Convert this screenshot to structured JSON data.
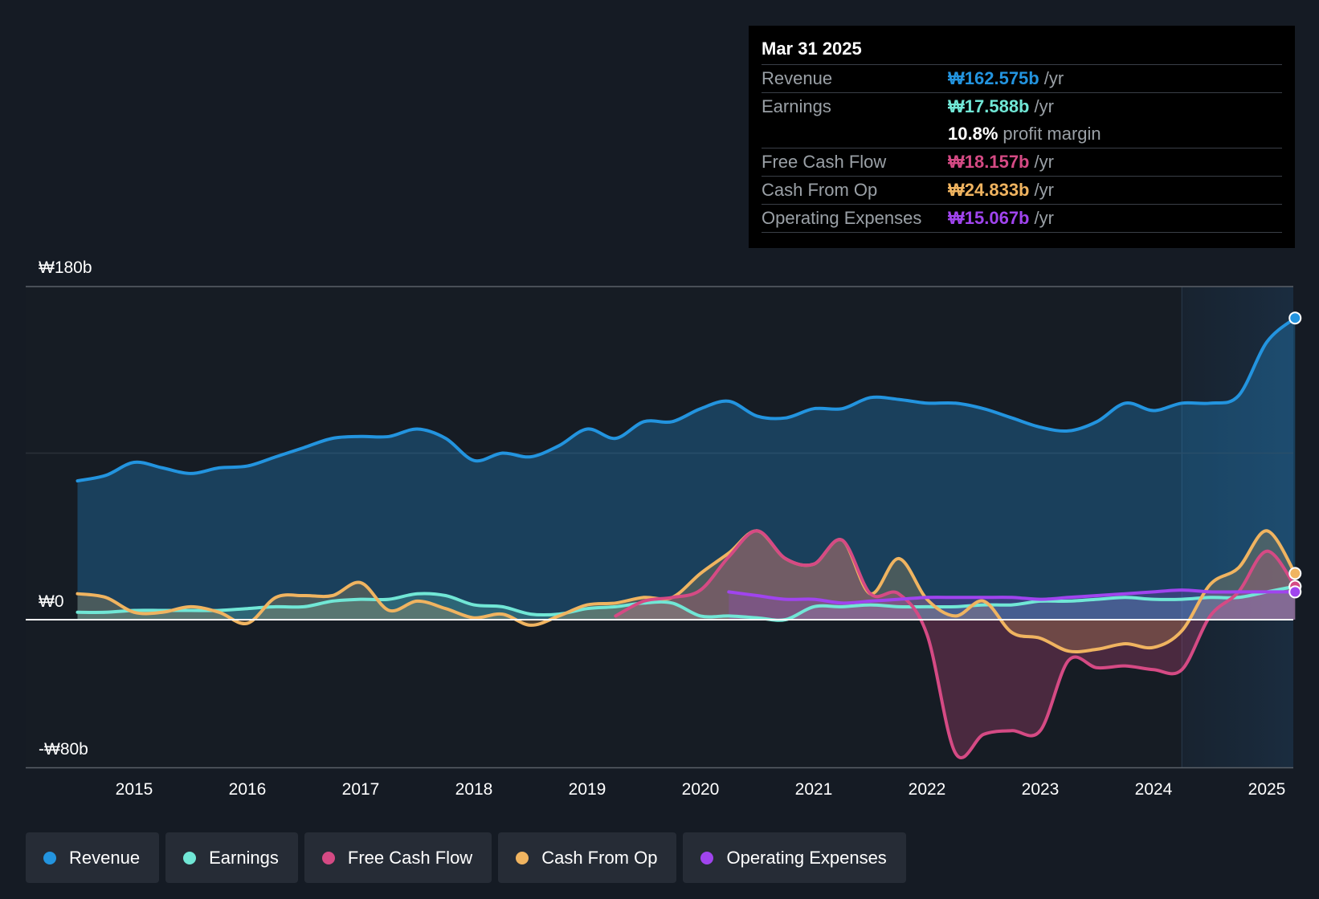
{
  "colors": {
    "background": "#151b24",
    "revenue": "#2394df",
    "earnings": "#71e7d6",
    "free_cash_flow": "#d54a84",
    "cash_from_op": "#f0b460",
    "operating_expenses": "#a044ee"
  },
  "tooltip": {
    "date": "Mar 31 2025",
    "rows": [
      {
        "label": "Revenue",
        "value": "₩162.575b",
        "unit": "/yr",
        "color": "#2394df"
      },
      {
        "label": "Earnings",
        "value": "₩17.588b",
        "unit": "/yr",
        "color": "#71e7d6"
      },
      {
        "label": "Free Cash Flow",
        "value": "₩18.157b",
        "unit": "/yr",
        "color": "#d54a84"
      },
      {
        "label": "Cash From Op",
        "value": "₩24.833b",
        "unit": "/yr",
        "color": "#f0b460"
      },
      {
        "label": "Operating Expenses",
        "value": "₩15.067b",
        "unit": "/yr",
        "color": "#a044ee"
      }
    ],
    "margin_value": "10.8%",
    "margin_label": "profit margin"
  },
  "legend": [
    {
      "label": "Revenue",
      "color": "#2394df"
    },
    {
      "label": "Earnings",
      "color": "#71e7d6"
    },
    {
      "label": "Free Cash Flow",
      "color": "#d54a84"
    },
    {
      "label": "Cash From Op",
      "color": "#f0b460"
    },
    {
      "label": "Operating Expenses",
      "color": "#a044ee"
    }
  ],
  "chart_data": {
    "type": "area",
    "title": "",
    "xlabel": "",
    "ylabel": "",
    "x_range": [
      2014.0,
      2025.25
    ],
    "ylim": [
      -80,
      180
    ],
    "y_tick_labels": [
      "₩180b",
      "₩0",
      "-₩80b"
    ],
    "y_tick_values": [
      180,
      0,
      -80
    ],
    "x_tick_labels": [
      "2015",
      "2016",
      "2017",
      "2018",
      "2019",
      "2020",
      "2021",
      "2022",
      "2023",
      "2024",
      "2025"
    ],
    "x_tick_values": [
      2015,
      2016,
      2017,
      2018,
      2019,
      2020,
      2021,
      2022,
      2023,
      2024,
      2025
    ],
    "highlight_start": 2024.25,
    "series": [
      {
        "name": "Revenue",
        "key": "revenue",
        "x": [
          2014.5,
          2014.75,
          2015.0,
          2015.25,
          2015.5,
          2015.75,
          2016.0,
          2016.25,
          2016.5,
          2016.75,
          2017.0,
          2017.25,
          2017.5,
          2017.75,
          2018.0,
          2018.25,
          2018.5,
          2018.75,
          2019.0,
          2019.25,
          2019.5,
          2019.75,
          2020.0,
          2020.25,
          2020.5,
          2020.75,
          2021.0,
          2021.25,
          2021.5,
          2021.75,
          2022.0,
          2022.25,
          2022.5,
          2022.75,
          2023.0,
          2023.25,
          2023.5,
          2023.75,
          2024.0,
          2024.25,
          2024.5,
          2024.75,
          2025.0,
          2025.25
        ],
        "values": [
          75,
          78,
          85,
          82,
          79,
          82,
          83,
          88,
          93,
          98,
          99,
          99,
          103,
          98,
          86,
          90,
          88,
          94,
          103,
          98,
          107,
          107,
          114,
          118,
          110,
          109,
          114,
          114,
          120,
          119,
          117,
          117,
          114,
          109,
          104,
          102,
          107,
          117,
          113,
          117,
          117,
          121,
          150,
          163
        ]
      },
      {
        "name": "Earnings",
        "key": "earnings",
        "x": [
          2014.5,
          2014.75,
          2015.0,
          2015.25,
          2015.5,
          2015.75,
          2016.0,
          2016.25,
          2016.5,
          2016.75,
          2017.0,
          2017.25,
          2017.5,
          2017.75,
          2018.0,
          2018.25,
          2018.5,
          2018.75,
          2019.0,
          2019.25,
          2019.5,
          2019.75,
          2020.0,
          2020.25,
          2020.5,
          2020.75,
          2021.0,
          2021.25,
          2021.5,
          2021.75,
          2022.0,
          2022.25,
          2022.5,
          2022.75,
          2023.0,
          2023.25,
          2023.5,
          2023.75,
          2024.0,
          2024.25,
          2024.5,
          2024.75,
          2025.0,
          2025.25
        ],
        "values": [
          4,
          4,
          5,
          5,
          5,
          5,
          6,
          7,
          7,
          10,
          11,
          11,
          14,
          13,
          8,
          7,
          3,
          3,
          6,
          7,
          9,
          9,
          2,
          2,
          1,
          0,
          7,
          7,
          8,
          7,
          7,
          7,
          8,
          8,
          10,
          10,
          11,
          12,
          11,
          11,
          12,
          12,
          15,
          18
        ]
      },
      {
        "name": "Free Cash Flow",
        "key": "free_cash_flow",
        "x": [
          2019.25,
          2019.5,
          2019.75,
          2020.0,
          2020.25,
          2020.5,
          2020.75,
          2021.0,
          2021.25,
          2021.5,
          2021.75,
          2022.0,
          2022.25,
          2022.5,
          2022.75,
          2023.0,
          2023.25,
          2023.5,
          2023.75,
          2024.0,
          2024.25,
          2024.5,
          2024.75,
          2025.0,
          2025.25
        ],
        "values": [
          2,
          10,
          12,
          16,
          34,
          48,
          33,
          30,
          43,
          14,
          14,
          -8,
          -72,
          -62,
          -60,
          -60,
          -22,
          -26,
          -25,
          -27,
          -27,
          2,
          15,
          37,
          18
        ]
      },
      {
        "name": "Cash From Op",
        "key": "cash_from_op",
        "x": [
          2014.5,
          2014.75,
          2015.0,
          2015.25,
          2015.5,
          2015.75,
          2016.0,
          2016.25,
          2016.5,
          2016.75,
          2017.0,
          2017.25,
          2017.5,
          2017.75,
          2018.0,
          2018.25,
          2018.5,
          2018.75,
          2019.0,
          2019.25,
          2019.5,
          2019.75,
          2020.0,
          2020.25,
          2020.5,
          2020.75,
          2021.0,
          2021.25,
          2021.5,
          2021.75,
          2022.0,
          2022.25,
          2022.5,
          2022.75,
          2023.0,
          2023.25,
          2023.5,
          2023.75,
          2024.0,
          2024.25,
          2024.5,
          2024.75,
          2025.0,
          2025.25
        ],
        "values": [
          14,
          12,
          4,
          4,
          7,
          4,
          -2,
          12,
          13,
          13,
          20,
          5,
          10,
          6,
          1,
          3,
          -3,
          2,
          8,
          9,
          12,
          12,
          25,
          36,
          48,
          33,
          30,
          43,
          14,
          33,
          11,
          2,
          10,
          -7,
          -10,
          -17,
          -16,
          -13,
          -15,
          -6,
          19,
          28,
          48,
          25
        ]
      },
      {
        "name": "Operating Expenses",
        "key": "operating_expenses",
        "x": [
          2020.25,
          2020.5,
          2020.75,
          2021.0,
          2021.25,
          2021.5,
          2021.75,
          2022.0,
          2022.25,
          2022.5,
          2022.75,
          2023.0,
          2023.25,
          2023.5,
          2023.75,
          2024.0,
          2024.25,
          2024.5,
          2024.75,
          2025.0,
          2025.25
        ],
        "values": [
          15,
          13,
          11,
          11,
          9,
          10,
          11,
          12,
          12,
          12,
          12,
          11,
          12,
          13,
          14,
          15,
          16,
          15,
          15,
          15,
          15
        ]
      }
    ]
  }
}
